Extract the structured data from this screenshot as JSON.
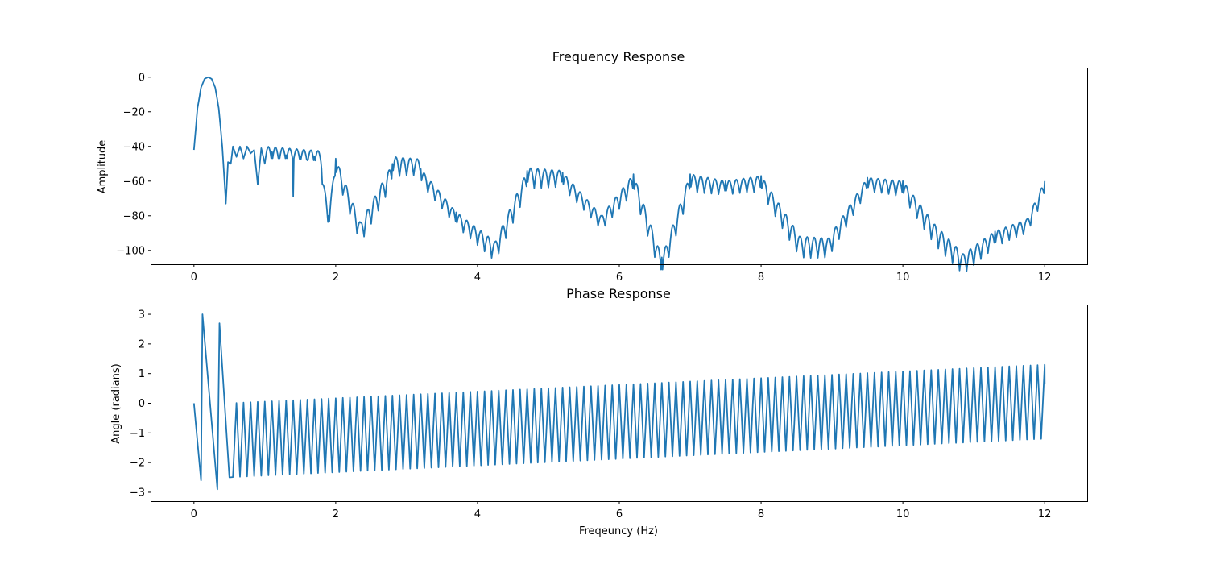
{
  "chart_data": [
    {
      "type": "line",
      "title": "Frequency Response",
      "xlabel": "",
      "ylabel": "Amplitude",
      "xlim": [
        -0.6,
        12.6
      ],
      "ylim": [
        -108,
        5
      ],
      "xticks": [
        0,
        2,
        4,
        6,
        8,
        10,
        12
      ],
      "yticks": [
        0,
        -20,
        -40,
        -60,
        -80,
        -100
      ],
      "grid": false,
      "color": "#1f77b4",
      "series": [
        {
          "x": [
            0.0,
            0.05,
            0.1,
            0.15,
            0.2,
            0.25,
            0.3,
            0.35,
            0.4,
            0.45,
            0.48,
            0.52,
            0.55,
            0.6,
            0.65,
            0.7,
            0.75,
            0.8,
            0.85,
            0.9,
            0.95,
            1.0,
            1.1,
            1.2,
            1.3,
            1.4,
            1.5,
            1.6,
            1.7,
            1.8,
            1.9,
            2.0,
            2.35,
            2.8,
            3.2,
            3.7,
            4.25,
            4.7,
            5.2,
            5.75,
            6.2,
            6.6,
            7.0,
            7.5,
            8.0,
            8.55,
            8.95,
            9.5,
            10.0,
            10.45,
            10.85,
            11.3,
            11.75,
            12.0
          ],
          "y": [
            -42,
            -18,
            -6,
            -1,
            0,
            -1,
            -6,
            -18,
            -40,
            -73,
            -49,
            -50,
            -40,
            -46,
            -40,
            -47,
            -40,
            -44,
            -42,
            -62,
            -41,
            -50,
            -43,
            -47,
            -45,
            -69,
            -46,
            -48,
            -46,
            -53,
            -80,
            -47,
            -84,
            -50,
            -53,
            -78,
            -95,
            -54,
            -55,
            -80,
            -56,
            -104,
            -56,
            -60,
            -57,
            -92,
            -93,
            -58,
            -60,
            -85,
            -102,
            -89,
            -82,
            -60
          ]
        }
      ]
    },
    {
      "type": "line",
      "title": "Phase Response",
      "xlabel": "Freqeuncy (Hz)",
      "ylabel": "Angle (radians)",
      "xlim": [
        -0.6,
        12.6
      ],
      "ylim": [
        -3.3,
        3.3
      ],
      "xticks": [
        0,
        2,
        4,
        6,
        8,
        10,
        12
      ],
      "yticks": [
        3,
        2,
        1,
        0,
        -1,
        -2,
        -3
      ],
      "grid": false,
      "color": "#1f77b4",
      "series": [
        {
          "x": [
            0.0,
            0.1,
            0.12,
            0.33,
            0.36,
            0.5
          ],
          "y": [
            0.0,
            -2.6,
            3.0,
            -2.9,
            2.7,
            -2.5
          ],
          "sawtooth": {
            "x_start": 0.5,
            "x_end": 12.0,
            "period": 0.1,
            "low_start": -2.5,
            "low_end": -1.2,
            "high_start": 0.0,
            "high_end": 1.3,
            "end_value": 0.65
          }
        }
      ]
    }
  ]
}
